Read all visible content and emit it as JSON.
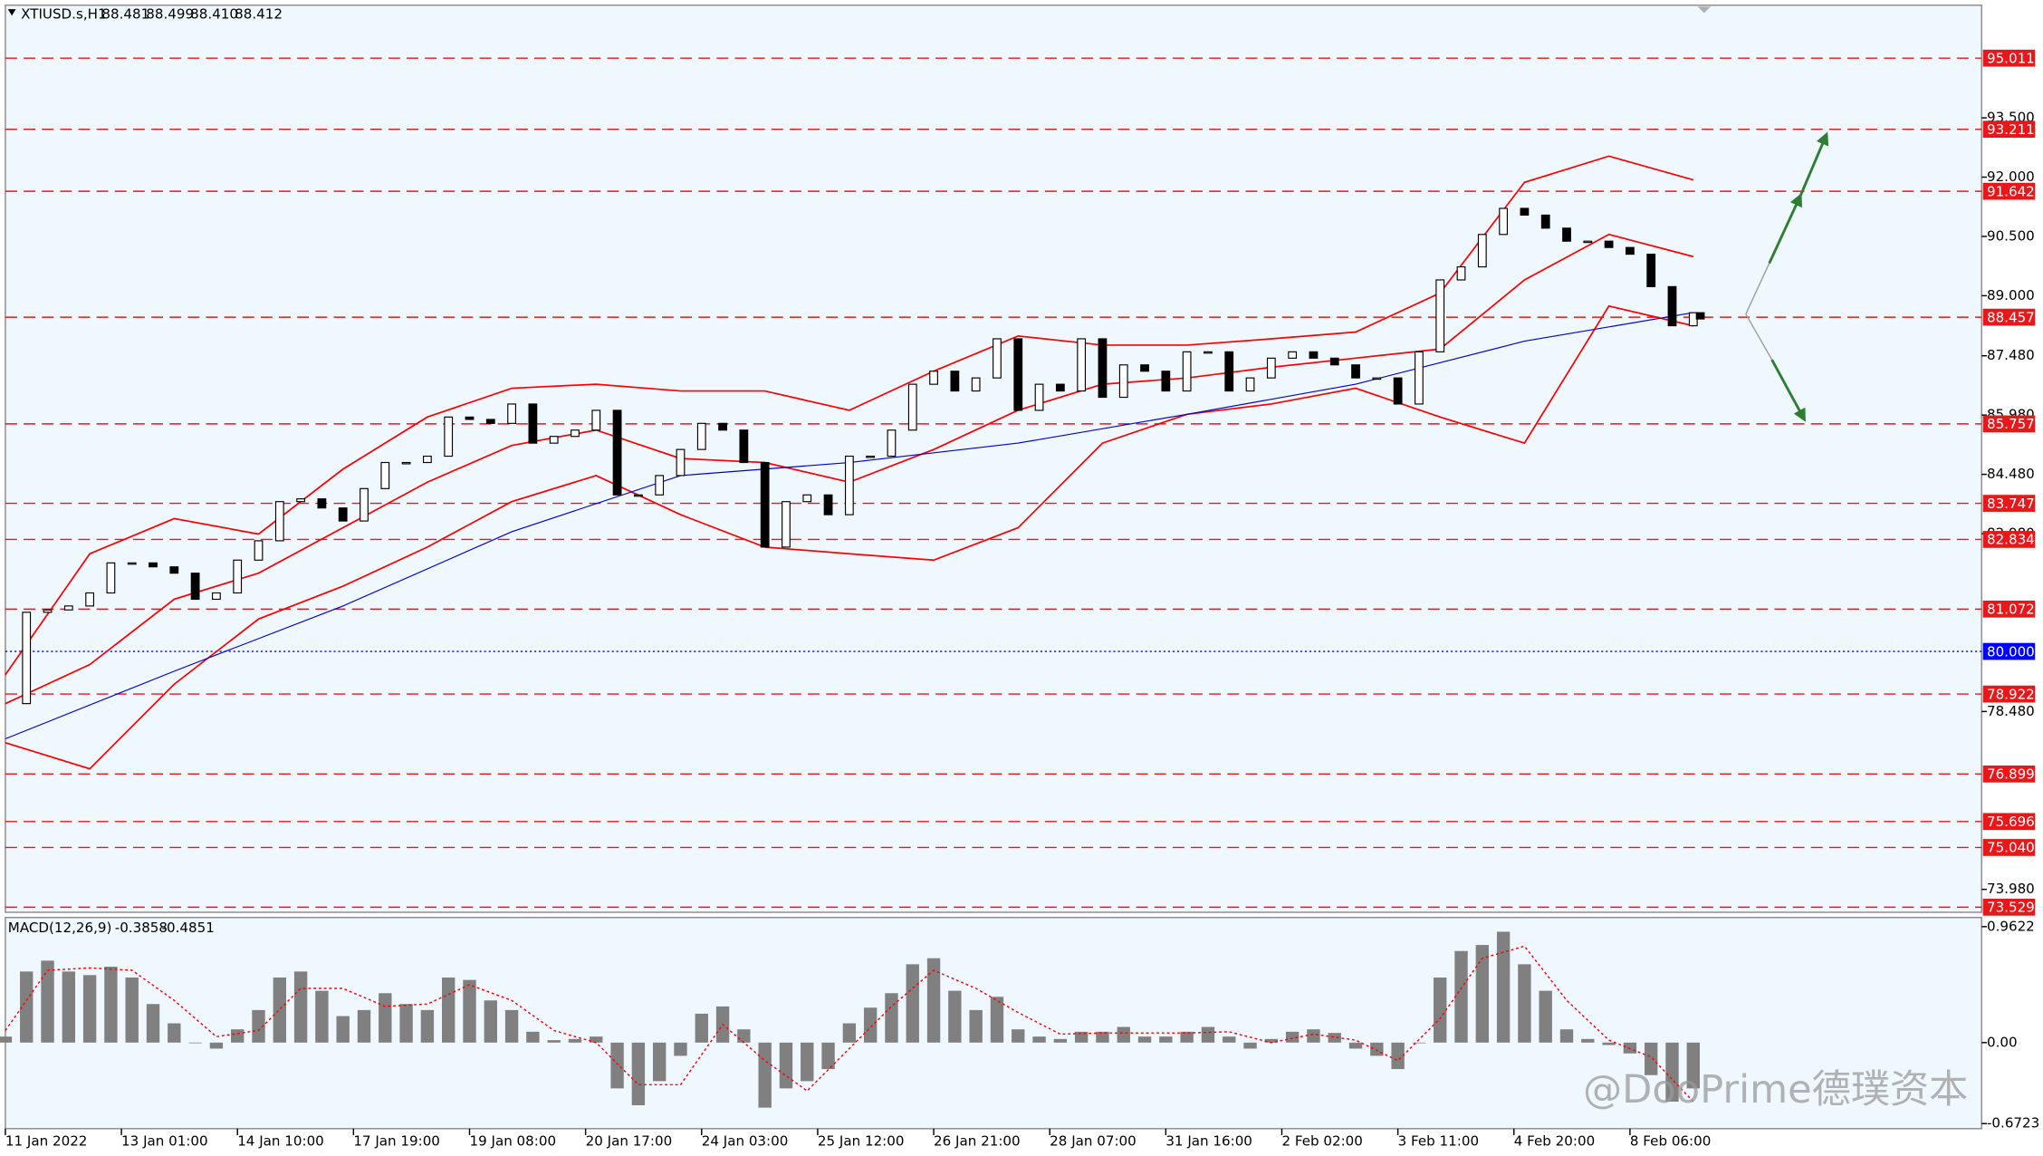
{
  "chart_data": [
    {
      "type": "price",
      "title": "XTIUSD.s,H1",
      "ohlc": [
        88.481,
        88.499,
        {
          "value": 88.41,
          "label": "88.410"
        },
        88.412
      ],
      "xlim": [
        0,
        562
      ],
      "ylim": [
        73.4,
        96.35
      ],
      "xticks": [
        {
          "value": 0,
          "label": "11 Jan 2022"
        },
        {
          "value": 33,
          "label": "13 Jan 01:00"
        },
        {
          "value": 66,
          "label": "14 Jan 10:00"
        },
        {
          "value": 99,
          "label": "17 Jan 19:00"
        },
        {
          "value": 132,
          "label": "19 Jan 08:00"
        },
        {
          "value": 165,
          "label": "20 Jan 17:00"
        },
        {
          "value": 198,
          "label": "24 Jan 03:00"
        },
        {
          "value": 231,
          "label": "25 Jan 12:00"
        },
        {
          "value": 264,
          "label": "26 Jan 21:00"
        },
        {
          "value": 297,
          "label": "28 Jan 07:00"
        },
        {
          "value": 330,
          "label": "31 Jan 16:00"
        },
        {
          "value": 363,
          "label": "2 Feb 02:00"
        },
        {
          "value": 396,
          "label": "3 Feb 11:00"
        },
        {
          "value": 429,
          "label": "4 Feb 20:00"
        },
        {
          "value": 462,
          "label": "8 Feb 06:00"
        }
      ],
      "yticks": [
        {
          "value": 93.5,
          "label": "93.500"
        },
        {
          "value": 92,
          "label": "92.000"
        },
        {
          "value": 90.5,
          "label": "90.500"
        },
        {
          "value": 89,
          "label": "89.000"
        },
        {
          "value": 87.48,
          "label": "87.480"
        },
        {
          "value": 85.98,
          "label": "85.980"
        },
        {
          "value": 84.48,
          "label": "84.480"
        },
        {
          "value": 82.98,
          "label": "82.980"
        },
        {
          "value": 78.48,
          "label": "78.480"
        },
        {
          "value": 73.98,
          "label": "73.980"
        }
      ],
      "price": {
        "up_color": "#ffffff",
        "down_color": "#000000",
        "x": [
          0,
          6,
          12,
          18,
          24,
          30,
          36,
          42,
          48,
          54,
          60,
          66,
          72,
          78,
          84,
          90,
          96,
          102,
          108,
          114,
          120,
          126,
          132,
          138,
          144,
          150,
          156,
          162,
          168,
          174,
          180,
          186,
          192,
          198,
          204,
          210,
          216,
          222,
          228,
          234,
          240,
          246,
          252,
          258,
          264,
          270,
          276,
          282,
          288,
          294,
          300,
          306,
          312,
          318,
          324,
          330,
          336,
          342,
          348,
          354,
          360,
          366,
          372,
          378,
          384,
          390,
          396,
          402,
          408,
          414,
          420,
          426,
          432,
          438,
          444,
          450,
          456,
          462,
          468,
          474,
          480,
          482
        ],
        "values": [
          78.68,
          80.99,
          81.05,
          81.15,
          81.48,
          82.24,
          82.24,
          82.14,
          81.98,
          81.32,
          81.48,
          82.31,
          82.8,
          83.79,
          83.86,
          83.63,
          83.3,
          84.12,
          84.78,
          84.78,
          84.94,
          85.93,
          85.87,
          85.77,
          86.26,
          85.27,
          85.44,
          85.6,
          86.1,
          83.96,
          83.96,
          84.45,
          85.11,
          85.77,
          85.6,
          84.78,
          82.64,
          83.79,
          83.96,
          83.46,
          84.94,
          84.94,
          85.6,
          86.76,
          87.09,
          86.59,
          86.92,
          87.91,
          86.1,
          86.76,
          86.59,
          87.91,
          86.43,
          87.25,
          87.09,
          86.59,
          87.58,
          87.58,
          86.59,
          86.92,
          87.42,
          87.58,
          87.42,
          87.25,
          86.92,
          86.92,
          86.26,
          87.58,
          89.4,
          89.73,
          90.55,
          91.21,
          91.04,
          90.71,
          90.38,
          90.38,
          90.22,
          90.05,
          89.23,
          88.24,
          88.57,
          88.412
        ]
      },
      "bands": [
        {
          "color": "#ff0000",
          "x": [
            0,
            24,
            48,
            72,
            96,
            120,
            144,
            168,
            192,
            216,
            240,
            264,
            288,
            312,
            336,
            360,
            384,
            408,
            432,
            456,
            480
          ],
          "values": [
            79.41,
            82.47,
            83.36,
            82.97,
            84.61,
            85.93,
            86.66,
            86.76,
            86.59,
            86.59,
            86.1,
            87.09,
            87.98,
            87.75,
            87.75,
            87.91,
            88.08,
            89.07,
            91.87,
            92.53,
            91.93
          ]
        },
        {
          "color": "#ff0000",
          "x": [
            0,
            24,
            48,
            72,
            96,
            120,
            144,
            168,
            192,
            216,
            240,
            264,
            288,
            312,
            336,
            360,
            384,
            408,
            432,
            456,
            480
          ],
          "values": [
            78.68,
            79.67,
            81.32,
            81.98,
            83.13,
            84.28,
            85.21,
            85.6,
            84.88,
            84.78,
            84.28,
            85.11,
            86.1,
            86.76,
            86.92,
            87.19,
            87.42,
            87.65,
            89.4,
            90.55,
            89.99
          ]
        },
        {
          "color": "#ff0000",
          "x": [
            0,
            24,
            48,
            72,
            96,
            120,
            144,
            168,
            192,
            216,
            240,
            264,
            288,
            312,
            336,
            360,
            384,
            408,
            432,
            456,
            480
          ],
          "values": [
            77.69,
            77.03,
            79.17,
            80.82,
            81.65,
            82.64,
            83.79,
            84.45,
            83.46,
            82.64,
            82.47,
            82.31,
            83.13,
            85.27,
            86.0,
            86.26,
            86.66,
            85.93,
            85.27,
            88.74,
            88.24
          ]
        }
      ],
      "ma": {
        "color": "#0000cd",
        "x": [
          0,
          48,
          96,
          144,
          192,
          240,
          288,
          336,
          384,
          432,
          480
        ],
        "values": [
          77.79,
          79.5,
          81.15,
          83.03,
          84.45,
          84.78,
          85.27,
          86.0,
          86.76,
          87.85,
          88.57
        ]
      },
      "levels": [
        {
          "color": "#e8171a",
          "style": "dashed",
          "values": [
            95.011,
            93.211,
            91.642,
            88.457,
            85.757,
            83.747,
            82.834,
            81.072,
            78.922,
            76.899,
            75.696,
            {
              "value": 75.04,
              "label": "75.040"
            },
            73.529
          ]
        },
        {
          "color": "#0000ff",
          "style": "dotted",
          "values": [
            {
              "value": 80,
              "label": "80.000"
            }
          ]
        }
      ]
    },
    {
      "type": "macd",
      "title": "MACD(12,26,9)",
      "readout": [
        -0.3858,
        -0.4851
      ],
      "ylim": [
        -0.714,
        1.038
      ],
      "yticks": [
        0.9622,
        {
          "value": 0,
          "label": "0.00"
        },
        -0.6723
      ],
      "histogram": {
        "color": "#808080",
        "x": [
          0,
          6,
          12,
          18,
          24,
          30,
          36,
          42,
          48,
          54,
          60,
          66,
          72,
          78,
          84,
          90,
          96,
          102,
          108,
          114,
          120,
          126,
          132,
          138,
          144,
          150,
          156,
          162,
          168,
          174,
          180,
          186,
          192,
          198,
          204,
          210,
          216,
          222,
          228,
          234,
          240,
          246,
          252,
          258,
          264,
          270,
          276,
          282,
          288,
          294,
          300,
          306,
          312,
          318,
          324,
          330,
          336,
          342,
          348,
          354,
          360,
          366,
          372,
          378,
          384,
          390,
          396,
          402,
          408,
          414,
          420,
          426,
          432,
          438,
          444,
          450,
          456,
          462,
          468,
          474,
          480
        ],
        "values": [
          0.05,
          0.59,
          0.68,
          0.59,
          0.56,
          0.63,
          0.54,
          0.32,
          0.16,
          0,
          -0.05,
          0.11,
          0.27,
          0.54,
          0.59,
          0.43,
          0.22,
          0.27,
          0.41,
          0.32,
          0.27,
          0.54,
          0.52,
          0.35,
          0.27,
          0.09,
          0.02,
          0.03,
          0.05,
          -0.38,
          -0.52,
          -0.32,
          -0.11,
          0.24,
          0.3,
          0.11,
          -0.54,
          -0.38,
          -0.32,
          -0.22,
          0.16,
          0.29,
          0.41,
          0.65,
          0.7,
          0.43,
          0.27,
          0.38,
          0.11,
          0.05,
          0.03,
          0.09,
          0.09,
          0.13,
          0.05,
          0.05,
          0.09,
          0.13,
          0.05,
          -0.05,
          0.03,
          0.09,
          0.11,
          0.08,
          -0.05,
          -0.11,
          -0.22,
          0,
          0.54,
          0.76,
          0.81,
          0.92,
          0.65,
          0.43,
          0.11,
          0.03,
          -0.02,
          -0.09,
          -0.27,
          -0.49,
          -0.38
        ]
      },
      "signal": {
        "color": "#ff0000",
        "x": [
          0,
          12,
          24,
          36,
          48,
          60,
          72,
          84,
          96,
          108,
          120,
          132,
          144,
          156,
          168,
          180,
          192,
          204,
          216,
          228,
          240,
          252,
          264,
          276,
          288,
          300,
          312,
          324,
          336,
          348,
          360,
          372,
          384,
          396,
          408,
          420,
          432,
          444,
          456,
          468,
          480
        ],
        "values": [
          0.1,
          0.6,
          0.62,
          0.6,
          0.35,
          0.05,
          0.1,
          0.45,
          0.45,
          0.3,
          0.32,
          0.48,
          0.35,
          0.1,
          0.0,
          -0.35,
          -0.35,
          0.15,
          -0.15,
          -0.4,
          -0.05,
          0.3,
          0.6,
          0.45,
          0.25,
          0.07,
          0.08,
          0.08,
          0.08,
          0.09,
          0.0,
          0.07,
          0.02,
          -0.15,
          0.2,
          0.7,
          0.8,
          0.35,
          0.02,
          -0.12,
          -0.49
        ]
      }
    }
  ],
  "watermark": "@DooPrime德璞资本"
}
